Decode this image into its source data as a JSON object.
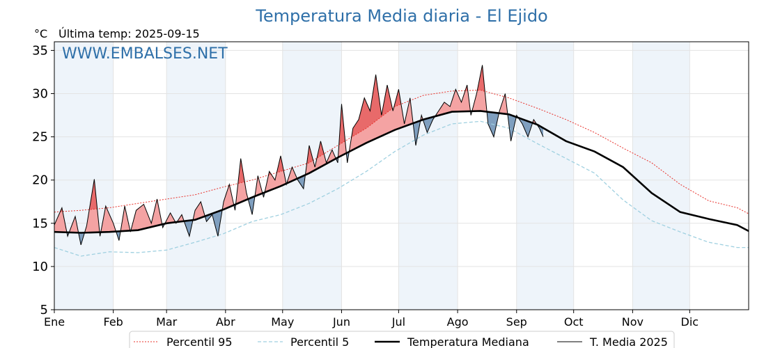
{
  "title": "Temperatura Media diaria - El Ejido",
  "unit": "°C",
  "last_temp": "Última temp: 2025-09-15",
  "watermark": "WWW.EMBALSES.NET",
  "colors": {
    "p95": "#e8302a",
    "p5": "#9fd0e0",
    "median": "#000000",
    "current": "#000000",
    "above_fill": "#f4a3a3",
    "above_p95_fill": "#e86a6a",
    "below_fill": "#7f9fbf",
    "month_band": "#eef4fa",
    "title": "#2e6fa8"
  },
  "chart_data": {
    "type": "line",
    "title": "Temperatura Media diaria - El Ejido",
    "ylabel": "°C",
    "ylim": [
      5,
      36
    ],
    "yticks": [
      5,
      10,
      15,
      20,
      25,
      30,
      35
    ],
    "xlim": [
      1,
      366
    ],
    "grid": true,
    "legend_position": "bottom",
    "months": [
      "Ene",
      "Feb",
      "Mar",
      "Abr",
      "May",
      "Jun",
      "Jul",
      "Ago",
      "Sep",
      "Oct",
      "Nov",
      "Dic"
    ],
    "month_start_days": [
      1,
      32,
      60,
      91,
      121,
      152,
      182,
      213,
      244,
      274,
      305,
      335
    ],
    "series": [
      {
        "name": "Percentil 95",
        "style": "dotted",
        "day": [
          1,
          15,
          30,
          45,
          60,
          75,
          90,
          105,
          120,
          135,
          150,
          165,
          180,
          195,
          210,
          225,
          240,
          255,
          270,
          285,
          300,
          315,
          330,
          345,
          360,
          366
        ],
        "values": [
          16.3,
          16.5,
          16.8,
          17.3,
          17.8,
          18.3,
          19.2,
          20.0,
          21.0,
          22.0,
          24.0,
          26.0,
          28.5,
          29.8,
          30.3,
          30.4,
          29.5,
          28.3,
          27.0,
          25.5,
          23.7,
          22.0,
          19.5,
          17.6,
          16.8,
          16.1
        ]
      },
      {
        "name": "Percentil 5",
        "style": "dashed",
        "day": [
          1,
          15,
          30,
          45,
          60,
          75,
          90,
          105,
          120,
          135,
          150,
          165,
          180,
          195,
          210,
          225,
          240,
          255,
          270,
          285,
          300,
          315,
          330,
          345,
          360,
          366
        ],
        "values": [
          12.2,
          11.2,
          11.7,
          11.6,
          11.9,
          12.8,
          13.8,
          15.2,
          16.0,
          17.3,
          19.0,
          21.0,
          23.3,
          25.2,
          26.5,
          26.8,
          26.0,
          24.2,
          22.5,
          20.8,
          17.7,
          15.3,
          14.0,
          12.8,
          12.2,
          12.2
        ]
      },
      {
        "name": "Temperatura Mediana",
        "style": "solid-thick",
        "day": [
          1,
          15,
          30,
          45,
          60,
          75,
          90,
          105,
          120,
          135,
          150,
          165,
          180,
          195,
          210,
          225,
          240,
          255,
          270,
          285,
          300,
          315,
          330,
          345,
          360,
          366
        ],
        "values": [
          14.0,
          13.9,
          14.0,
          14.2,
          15.0,
          15.4,
          16.6,
          18.0,
          19.3,
          20.8,
          22.6,
          24.3,
          25.8,
          27.0,
          27.9,
          28.0,
          27.6,
          26.4,
          24.5,
          23.3,
          21.5,
          18.5,
          16.3,
          15.5,
          14.8,
          14.1
        ]
      },
      {
        "name": "T. Media 2025",
        "style": "solid-thin",
        "day": [
          1,
          5,
          8,
          12,
          15,
          18,
          22,
          25,
          28,
          32,
          35,
          38,
          41,
          44,
          48,
          52,
          55,
          58,
          62,
          65,
          68,
          72,
          75,
          78,
          81,
          84,
          87,
          90,
          93,
          96,
          99,
          102,
          105,
          108,
          111,
          114,
          117,
          120,
          123,
          126,
          129,
          132,
          135,
          138,
          141,
          144,
          147,
          150,
          152,
          155,
          158,
          161,
          164,
          167,
          170,
          173,
          176,
          179,
          182,
          185,
          188,
          191,
          194,
          197,
          200,
          203,
          206,
          209,
          212,
          215,
          218,
          220,
          223,
          226,
          229,
          232,
          235,
          238,
          241,
          244,
          247,
          250,
          253,
          256,
          258
        ],
        "values": [
          14.8,
          16.8,
          13.5,
          15.8,
          12.5,
          14.7,
          20.1,
          13.5,
          17.0,
          15.0,
          13.0,
          17.0,
          14.0,
          16.5,
          17.2,
          15.0,
          17.8,
          14.5,
          16.2,
          15.0,
          16.0,
          13.5,
          16.5,
          17.5,
          15.2,
          16.0,
          13.5,
          17.5,
          19.5,
          16.5,
          22.5,
          18.5,
          16.0,
          20.5,
          18.0,
          21.0,
          20.0,
          22.8,
          19.5,
          21.5,
          20.0,
          19.0,
          24.0,
          21.5,
          24.5,
          22.0,
          23.5,
          22.0,
          28.8,
          22.0,
          26.0,
          27.0,
          29.5,
          28.0,
          32.2,
          27.5,
          31.0,
          28.0,
          30.5,
          26.5,
          29.5,
          24.0,
          27.5,
          25.5,
          27.0,
          28.0,
          29.0,
          28.5,
          30.5,
          29.0,
          31.0,
          27.5,
          30.0,
          33.3,
          26.5,
          25.0,
          28.0,
          30.0,
          24.5,
          27.5,
          26.5,
          25.0,
          27.0,
          26.0,
          25.0
        ]
      }
    ]
  },
  "legend": [
    {
      "label": "Percentil 95",
      "style": "dotted"
    },
    {
      "label": "Percentil 5",
      "style": "dashed"
    },
    {
      "label": "Temperatura Mediana",
      "style": "solid-thick"
    },
    {
      "label": "T. Media 2025",
      "style": "solid-thin"
    }
  ]
}
